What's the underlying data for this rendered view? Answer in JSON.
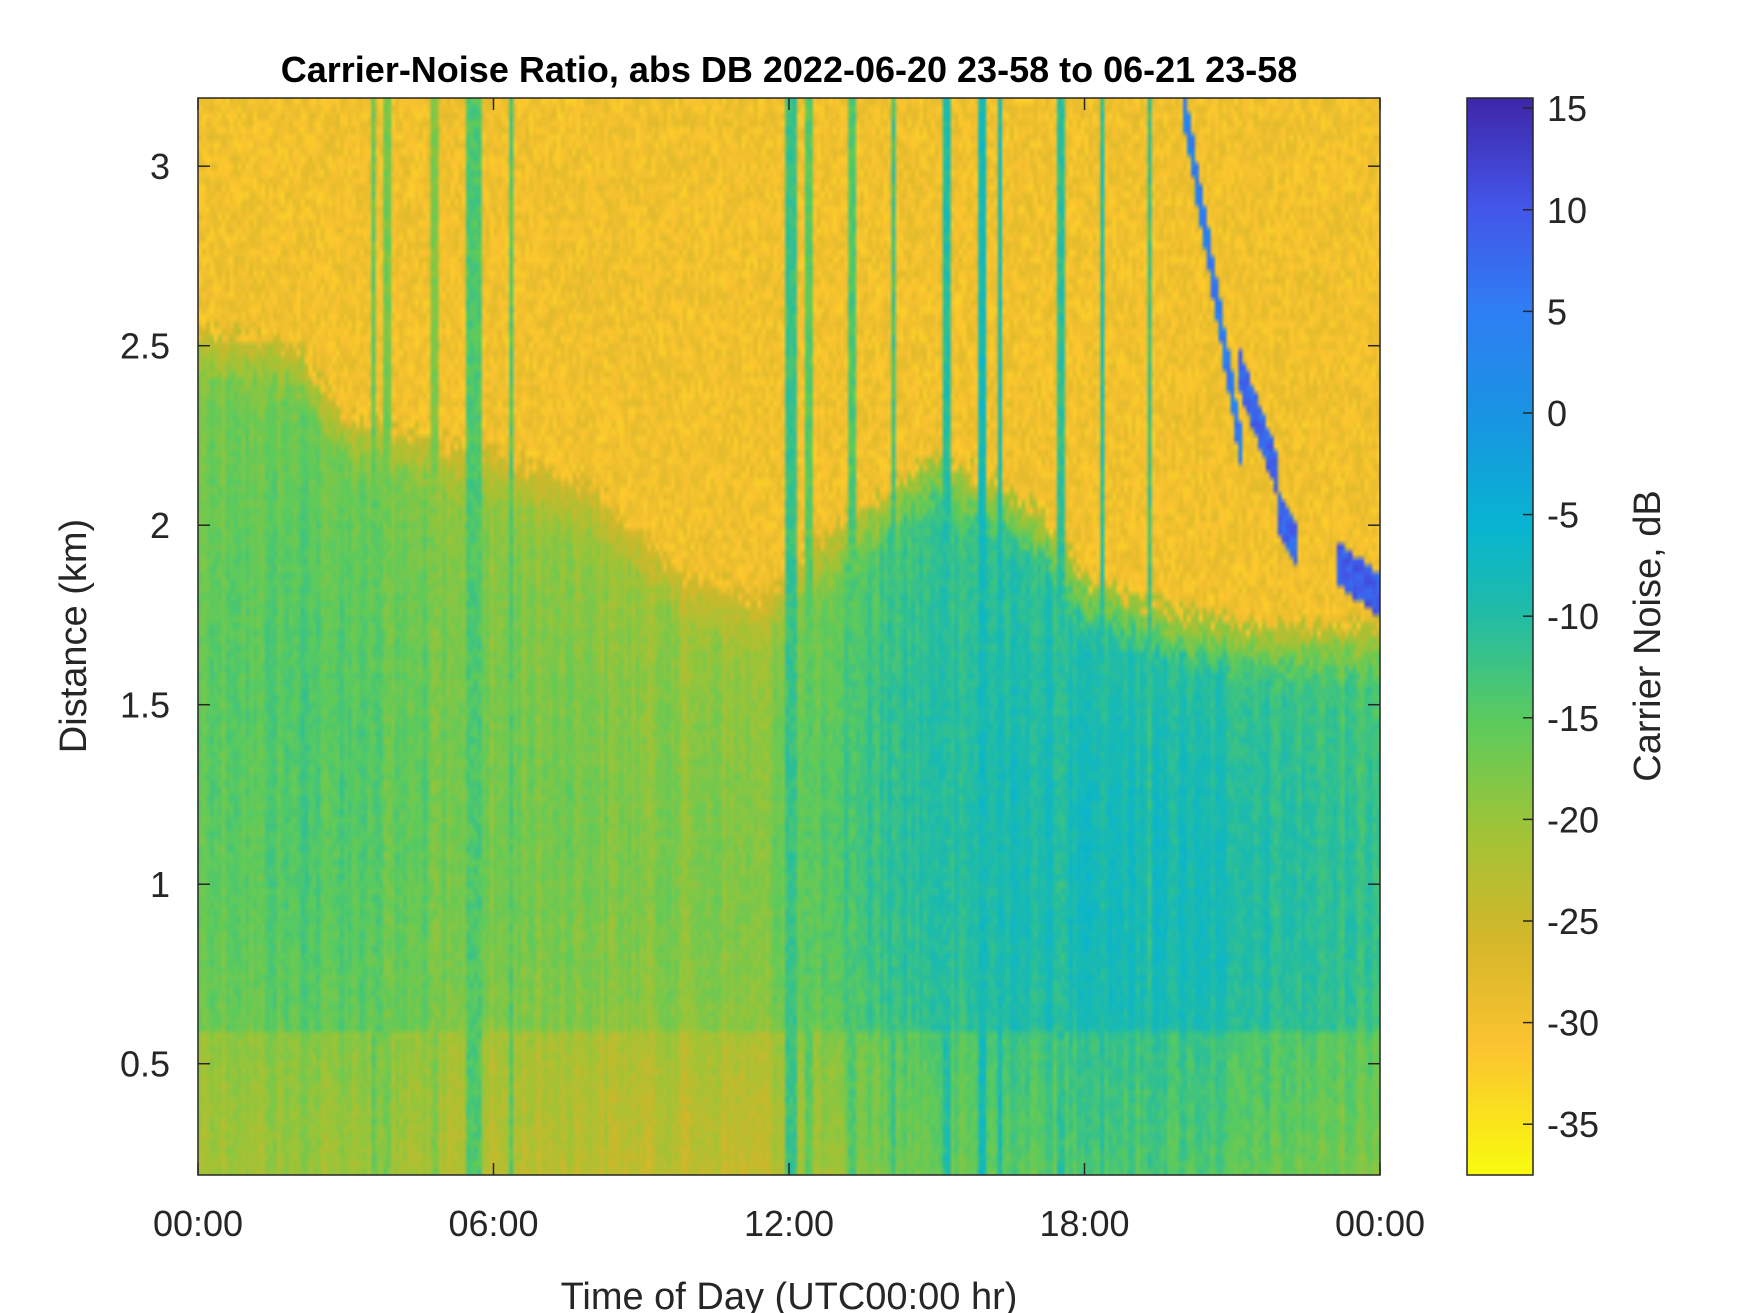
{
  "chart_data": {
    "type": "heatmap",
    "title": "Carrier-Noise Ratio, abs DB 2022-06-20 23-58 to 06-21 23-58",
    "xlabel": "Time of Day (UTC00:00 hr)",
    "ylabel": "Distance (km)",
    "colorbar_label": "Carrier Noise, dB",
    "xlim_hours": [
      0,
      24
    ],
    "ylim_km": [
      0.19,
      3.19
    ],
    "clim_db": [
      -37.5,
      15.5
    ],
    "colormap": "parula-reversed",
    "x_ticks": [
      {
        "value": 0,
        "label": "00:00"
      },
      {
        "value": 6,
        "label": "06:00"
      },
      {
        "value": 12,
        "label": "12:00"
      },
      {
        "value": 18,
        "label": "18:00"
      },
      {
        "value": 24,
        "label": "00:00"
      }
    ],
    "y_ticks": [
      {
        "value": 0.5,
        "label": "0.5"
      },
      {
        "value": 1,
        "label": "1"
      },
      {
        "value": 1.5,
        "label": "1.5"
      },
      {
        "value": 2,
        "label": "2"
      },
      {
        "value": 2.5,
        "label": "2.5"
      },
      {
        "value": 3,
        "label": "3"
      }
    ],
    "c_ticks": [
      {
        "value": 15,
        "label": "15"
      },
      {
        "value": 10,
        "label": "10"
      },
      {
        "value": 5,
        "label": "5"
      },
      {
        "value": 0,
        "label": "0"
      },
      {
        "value": -5,
        "label": "-5"
      },
      {
        "value": -10,
        "label": "-10"
      },
      {
        "value": -15,
        "label": "-15"
      },
      {
        "value": -20,
        "label": "-20"
      },
      {
        "value": -25,
        "label": "-25"
      },
      {
        "value": -30,
        "label": "-30"
      },
      {
        "value": -35,
        "label": "-35"
      }
    ],
    "field": {
      "boundary_height_km": [
        [
          0,
          2.55
        ],
        [
          2,
          2.5
        ],
        [
          3,
          2.3
        ],
        [
          6,
          2.2
        ],
        [
          8,
          2.1
        ],
        [
          10,
          1.85
        ],
        [
          11.5,
          1.8
        ],
        [
          13,
          2.0
        ],
        [
          15,
          2.2
        ],
        [
          17,
          2.05
        ],
        [
          18,
          1.85
        ],
        [
          20,
          1.75
        ],
        [
          22,
          1.72
        ],
        [
          24,
          1.72
        ]
      ],
      "upper_layer_db": -30,
      "lower_layer_db_by_hour": [
        [
          0,
          -19
        ],
        [
          2,
          -17
        ],
        [
          4,
          -18
        ],
        [
          6,
          -20
        ],
        [
          9,
          -21
        ],
        [
          11.5,
          -21
        ],
        [
          13,
          -16
        ],
        [
          15,
          -13
        ],
        [
          17,
          -12
        ],
        [
          19,
          -11
        ],
        [
          21,
          -12
        ],
        [
          23,
          -14
        ],
        [
          24,
          -15
        ]
      ],
      "streaks": [
        {
          "x": 3.55,
          "w": 0.12,
          "db": -15
        },
        {
          "x": 3.85,
          "w": 0.15,
          "db": -17
        },
        {
          "x": 4.8,
          "w": 0.1,
          "db": -18
        },
        {
          "x": 5.6,
          "w": 0.25,
          "db": -14
        },
        {
          "x": 6.35,
          "w": 0.12,
          "db": -14
        },
        {
          "x": 12.05,
          "w": 0.2,
          "db": -12
        },
        {
          "x": 12.4,
          "w": 0.12,
          "db": -15
        },
        {
          "x": 13.3,
          "w": 0.15,
          "db": -14
        },
        {
          "x": 14.1,
          "w": 0.12,
          "db": -12
        },
        {
          "x": 15.2,
          "w": 0.12,
          "db": -10
        },
        {
          "x": 15.9,
          "w": 0.15,
          "db": -8
        },
        {
          "x": 16.3,
          "w": 0.1,
          "db": -8
        },
        {
          "x": 17.5,
          "w": 0.15,
          "db": -11
        },
        {
          "x": 18.35,
          "w": 0.12,
          "db": -10
        },
        {
          "x": 19.3,
          "w": 0.12,
          "db": -12
        }
      ],
      "plumes": [
        {
          "x": [
            20.0,
            21.2
          ],
          "y": [
            3.19,
            2.2
          ],
          "db": 5
        },
        {
          "x": [
            21.1,
            21.9
          ],
          "y": [
            2.45,
            2.15
          ],
          "db": 8
        },
        {
          "x": [
            21.9,
            22.3
          ],
          "y": [
            2.05,
            1.95
          ],
          "db": 8
        },
        {
          "x": [
            23.1,
            24.0
          ],
          "y": [
            1.9,
            1.8
          ],
          "db": 9
        }
      ]
    }
  }
}
